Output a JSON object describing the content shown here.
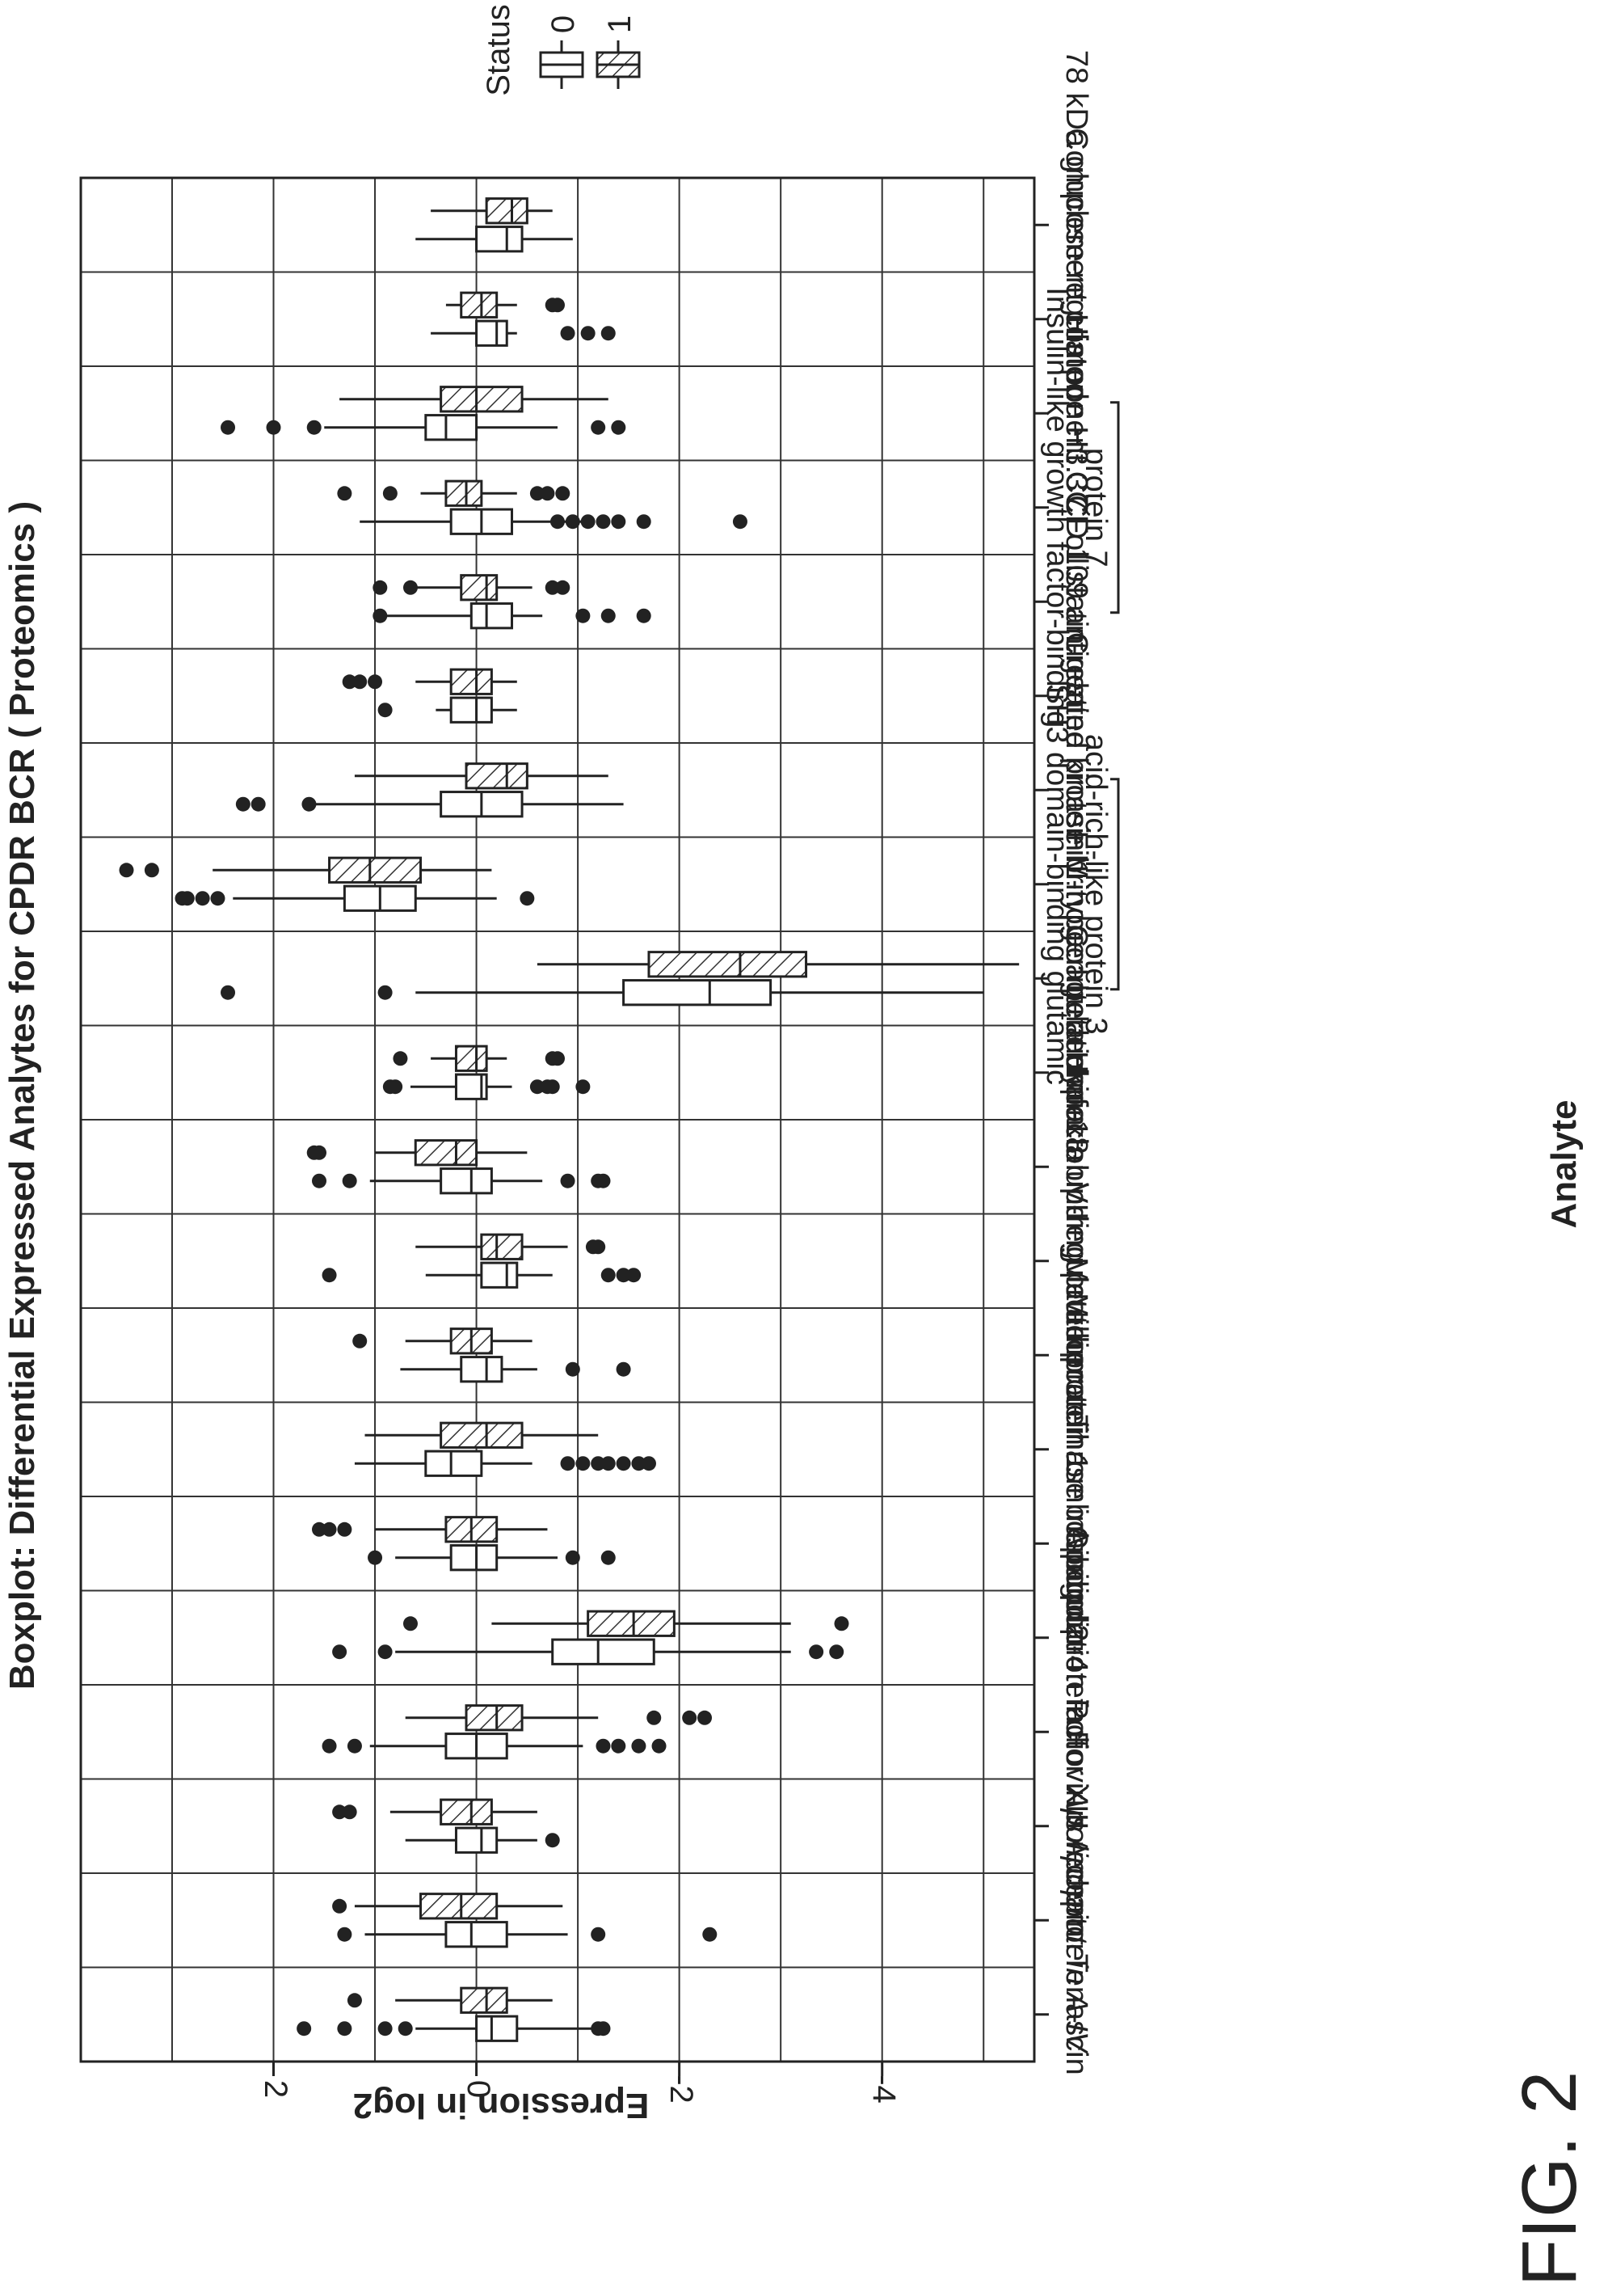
{
  "figure_label": "FIG. 2",
  "chart_data": {
    "type": "boxplot",
    "title": "Boxplot: Differential Expressed Analytes for CPDR BCR ( Proteomics )",
    "xlabel": "Analyte",
    "ylabel": "Epression in log2",
    "ylim": [
      -5.5,
      3.9
    ],
    "yticks": [
      2,
      0,
      -2,
      -4
    ],
    "ytick_labels": [
      "2",
      "0",
      "-2",
      "-4"
    ],
    "grid": true,
    "legend": {
      "title": "Status",
      "placement": "top-right",
      "entries": [
        {
          "label": "0",
          "pattern": "plain"
        },
        {
          "label": "1",
          "pattern": "hatched"
        }
      ]
    },
    "categories": [
      {
        "label": [
          "Tenascin"
        ],
        "italic": false
      },
      {
        "label": [
          "Apolipoprotein A-IV"
        ],
        "italic": true
      },
      {
        "label": [
          "Poliovirus receptor"
        ],
        "italic": false
      },
      {
        "label": [
          "Coagulation factor XIII A chain"
        ],
        "italic": false
      },
      {
        "label": [
          "Apolipoprotein F"
        ],
        "italic": false
      },
      {
        "label": [
          "Thrombospondin-4"
        ],
        "italic": false
      },
      {
        "label": [
          "Metalloproteinase inhibitor 2"
        ],
        "italic": false
      },
      {
        "label": [
          "Mimecan"
        ],
        "italic": false
      },
      {
        "label": [
          "Hypoxia up-regulated protein 1"
        ],
        "italic": false
      },
      {
        "label": [
          "Interleukin-18-binding protein"
        ],
        "italic": false
      },
      {
        "label": [
          "Coagulation factor VII"
        ],
        "italic": false
      },
      {
        "label": [
          "Fibrinogen beta chain"
        ],
        "italic": false
      },
      {
        "label": [
          "SH3 domain-binding glutamic",
          "acid-rich-like protein 3"
        ],
        "italic": false,
        "bracket": true
      },
      {
        "label": [
          "Creatine kinase M-type"
        ],
        "italic": false
      },
      {
        "label": [
          "Follistatin-related protein 1"
        ],
        "italic": false
      },
      {
        "label": [
          "CD 109 antigen"
        ],
        "italic": false
      },
      {
        "label": [
          "Insulin-like growth factor-binding",
          "protein 7"
        ],
        "italic": false,
        "bracket": true
      },
      {
        "label": [
          "Histone H3.3C"
        ],
        "italic": false
      },
      {
        "label": [
          "Complement component C7"
        ],
        "italic": false
      },
      {
        "label": [
          "78 kDa glucose-regulated"
        ],
        "italic": false
      }
    ],
    "series": [
      {
        "name": "0",
        "boxes": [
          {
            "whisker_low": -1.2,
            "q1": -0.4,
            "median": -0.15,
            "q3": 0.0,
            "whisker_high": 0.6,
            "outliers": [
              -1.2,
              -1.25,
              0.7,
              0.9,
              1.3,
              1.7
            ]
          },
          {
            "whisker_low": -0.9,
            "q1": -0.3,
            "median": 0.05,
            "q3": 0.3,
            "whisker_high": 1.1,
            "outliers": [
              -1.2,
              -2.3,
              1.3
            ]
          },
          {
            "whisker_low": -0.6,
            "q1": -0.2,
            "median": -0.05,
            "q3": 0.2,
            "whisker_high": 0.7,
            "outliers": [
              -0.75
            ]
          },
          {
            "whisker_low": -1.05,
            "q1": -0.3,
            "median": 0.0,
            "q3": 0.3,
            "whisker_high": 1.05,
            "outliers": [
              -1.25,
              -1.4,
              -1.6,
              -1.8,
              1.2,
              1.45
            ]
          },
          {
            "whisker_low": -3.1,
            "q1": -1.75,
            "median": -1.2,
            "q3": -0.75,
            "whisker_high": 0.8,
            "outliers": [
              -3.35,
              -3.55,
              0.9,
              1.35
            ]
          },
          {
            "whisker_low": -0.8,
            "q1": -0.2,
            "median": 0.0,
            "q3": 0.25,
            "whisker_high": 0.8,
            "outliers": [
              -0.95,
              -1.3,
              1.0
            ]
          },
          {
            "whisker_low": -0.55,
            "q1": -0.05,
            "median": 0.25,
            "q3": 0.5,
            "whisker_high": 1.2,
            "outliers": [
              -0.9,
              -1.05,
              -1.2,
              -1.3,
              -1.45,
              -1.6,
              -1.7
            ]
          },
          {
            "whisker_low": -0.6,
            "q1": -0.25,
            "median": -0.1,
            "q3": 0.15,
            "whisker_high": 0.75,
            "outliers": [
              -0.95,
              -1.45
            ]
          },
          {
            "whisker_low": -0.75,
            "q1": -0.4,
            "median": -0.3,
            "q3": -0.05,
            "whisker_high": 0.5,
            "outliers": [
              -1.3,
              -1.45,
              -1.55,
              1.45
            ]
          },
          {
            "whisker_low": -0.65,
            "q1": -0.15,
            "median": 0.05,
            "q3": 0.35,
            "whisker_high": 1.05,
            "outliers": [
              -0.9,
              -1.2,
              -1.25,
              1.25,
              1.55
            ]
          },
          {
            "whisker_low": -0.35,
            "q1": -0.1,
            "median": -0.05,
            "q3": 0.2,
            "whisker_high": 0.65,
            "outliers": [
              -0.6,
              -0.7,
              -0.75,
              -1.05,
              0.8,
              0.85
            ]
          },
          {
            "whisker_low": -5.0,
            "q1": -2.9,
            "median": -2.3,
            "q3": -1.45,
            "whisker_high": 0.6,
            "outliers": [
              0.9,
              2.45
            ]
          },
          {
            "whisker_low": -0.2,
            "q1": 0.6,
            "median": 0.95,
            "q3": 1.3,
            "whisker_high": 2.4,
            "outliers": [
              -0.5,
              2.55,
              2.7,
              2.85,
              2.9
            ]
          },
          {
            "whisker_low": -1.45,
            "q1": -0.45,
            "median": -0.05,
            "q3": 0.35,
            "whisker_high": 1.6,
            "outliers": [
              1.65,
              2.15,
              2.3
            ]
          },
          {
            "whisker_low": -0.4,
            "q1": -0.15,
            "median": 0.0,
            "q3": 0.25,
            "whisker_high": 0.4,
            "outliers": [
              0.9
            ]
          },
          {
            "whisker_low": -0.65,
            "q1": -0.35,
            "median": -0.1,
            "q3": 0.05,
            "whisker_high": 0.95,
            "outliers": [
              -1.05,
              -1.3,
              -1.65,
              0.95
            ]
          },
          {
            "whisker_low": -1.1,
            "q1": -0.35,
            "median": -0.05,
            "q3": 0.25,
            "whisker_high": 1.15,
            "outliers": [
              -0.8,
              -0.95,
              -1.1,
              -1.25,
              -1.4,
              -1.65,
              -2.6
            ]
          },
          {
            "whisker_low": -0.8,
            "q1": 0.0,
            "median": 0.3,
            "q3": 0.5,
            "whisker_high": 1.5,
            "outliers": [
              -1.2,
              -1.4,
              1.6,
              2.0,
              2.45
            ]
          },
          {
            "whisker_low": -0.4,
            "q1": -0.3,
            "median": -0.2,
            "q3": 0.0,
            "whisker_high": 0.45,
            "outliers": [
              -0.9,
              -1.1,
              -1.3
            ]
          },
          {
            "whisker_low": -0.95,
            "q1": -0.45,
            "median": -0.3,
            "q3": 0.0,
            "whisker_high": 0.6,
            "outliers": []
          }
        ]
      },
      {
        "name": "1",
        "boxes": [
          {
            "whisker_low": -0.75,
            "q1": -0.3,
            "median": -0.1,
            "q3": 0.15,
            "whisker_high": 0.8,
            "outliers": [
              1.2
            ]
          },
          {
            "whisker_low": -0.85,
            "q1": -0.2,
            "median": 0.15,
            "q3": 0.55,
            "whisker_high": 1.2,
            "outliers": [
              1.35
            ]
          },
          {
            "whisker_low": -0.6,
            "q1": -0.15,
            "median": 0.05,
            "q3": 0.35,
            "whisker_high": 0.85,
            "outliers": [
              1.25,
              1.35
            ]
          },
          {
            "whisker_low": -1.2,
            "q1": -0.45,
            "median": -0.2,
            "q3": 0.1,
            "whisker_high": 0.7,
            "outliers": [
              -1.75,
              -2.1,
              -2.25
            ]
          },
          {
            "whisker_low": -3.1,
            "q1": -1.95,
            "median": -1.55,
            "q3": -1.1,
            "whisker_high": -0.15,
            "outliers": [
              -3.6,
              0.65
            ]
          },
          {
            "whisker_low": -0.7,
            "q1": -0.2,
            "median": 0.05,
            "q3": 0.3,
            "whisker_high": 1.0,
            "outliers": [
              1.3,
              1.45,
              1.55
            ]
          },
          {
            "whisker_low": -1.2,
            "q1": -0.45,
            "median": -0.1,
            "q3": 0.35,
            "whisker_high": 1.1,
            "outliers": []
          },
          {
            "whisker_low": -0.55,
            "q1": -0.15,
            "median": 0.05,
            "q3": 0.25,
            "whisker_high": 0.7,
            "outliers": [
              1.15
            ]
          },
          {
            "whisker_low": -0.9,
            "q1": -0.45,
            "median": -0.2,
            "q3": -0.05,
            "whisker_high": 0.6,
            "outliers": [
              -1.15,
              -1.2
            ]
          },
          {
            "whisker_low": -0.5,
            "q1": 0.0,
            "median": 0.2,
            "q3": 0.6,
            "whisker_high": 1.0,
            "outliers": [
              1.55,
              1.6
            ]
          },
          {
            "whisker_low": -0.3,
            "q1": -0.1,
            "median": 0.0,
            "q3": 0.2,
            "whisker_high": 0.45,
            "outliers": [
              -0.75,
              -0.8,
              0.75
            ]
          },
          {
            "whisker_low": -5.35,
            "q1": -3.25,
            "median": -2.6,
            "q3": -1.7,
            "whisker_high": -0.6,
            "outliers": []
          },
          {
            "whisker_low": -0.15,
            "q1": 0.55,
            "median": 1.05,
            "q3": 1.45,
            "whisker_high": 2.6,
            "outliers": [
              3.2,
              3.45
            ]
          },
          {
            "whisker_low": -1.3,
            "q1": -0.5,
            "median": -0.3,
            "q3": 0.1,
            "whisker_high": 1.2,
            "outliers": []
          },
          {
            "whisker_low": -0.4,
            "q1": -0.15,
            "median": 0.0,
            "q3": 0.25,
            "whisker_high": 0.6,
            "outliers": [
              1.0,
              1.15,
              1.25
            ]
          },
          {
            "whisker_low": -0.55,
            "q1": -0.2,
            "median": -0.1,
            "q3": 0.15,
            "whisker_high": 0.6,
            "outliers": [
              -0.75,
              -0.85,
              0.65,
              0.95
            ]
          },
          {
            "whisker_low": -0.4,
            "q1": -0.05,
            "median": 0.1,
            "q3": 0.3,
            "whisker_high": 0.55,
            "outliers": [
              -0.6,
              -0.7,
              -0.85,
              0.85,
              1.3
            ]
          },
          {
            "whisker_low": -1.3,
            "q1": -0.45,
            "median": 0.0,
            "q3": 0.35,
            "whisker_high": 1.35,
            "outliers": []
          },
          {
            "whisker_low": -0.4,
            "q1": -0.2,
            "median": -0.05,
            "q3": 0.15,
            "whisker_high": 0.3,
            "outliers": [
              -0.75,
              -0.8
            ]
          },
          {
            "whisker_low": -0.75,
            "q1": -0.5,
            "median": -0.35,
            "q3": -0.1,
            "whisker_high": 0.45,
            "outliers": []
          }
        ]
      }
    ]
  }
}
